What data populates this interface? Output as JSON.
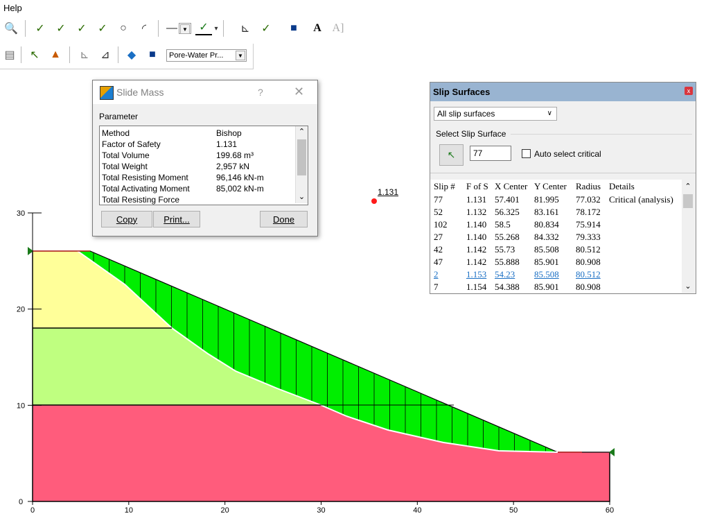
{
  "menu": {
    "help": "Help"
  },
  "toolbar2": {
    "pore_water_combo": "Pore-Water Pr..."
  },
  "canvas": {
    "x_ticks": [
      "0",
      "10",
      "20",
      "30",
      "40",
      "50",
      "60"
    ],
    "y_ticks": [
      "0",
      "10",
      "20",
      "30"
    ],
    "fs_label": "1.131",
    "colors": {
      "top_layer": "#ffff99",
      "mid_layer": "#bfff80",
      "bottom_layer": "#ff5c7c",
      "slide_mass": "#00ee00"
    }
  },
  "slide_mass": {
    "title": "Slide Mass",
    "help_glyph": "?",
    "close_glyph": "✕",
    "parameter_label": "Parameter",
    "rows": [
      {
        "k": "Method",
        "v": "Bishop"
      },
      {
        "k": "Factor of Safety",
        "v": "1.131"
      },
      {
        "k": "Total Volume",
        "v": "199.68 m³"
      },
      {
        "k": "Total Weight",
        "v": "2,957 kN"
      },
      {
        "k": "Total Resisting Moment",
        "v": "96,146 kN-m"
      },
      {
        "k": "Total Activating Moment",
        "v": "85,002 kN-m"
      },
      {
        "k": "Total Resisting Force",
        "v": ""
      }
    ],
    "copy_label": "Copy",
    "print_label": "Print...",
    "done_label": "Done"
  },
  "slip_surfaces": {
    "title": "Slip Surfaces",
    "scope": "All slip surfaces",
    "select_label": "Select Slip Surface",
    "number": "77",
    "auto_critical": "Auto select critical",
    "columns": [
      "Slip #",
      "F of S",
      "X Center",
      "Y Center",
      "Radius",
      "Details"
    ],
    "rows": [
      [
        "77",
        "1.131",
        "57.401",
        "81.995",
        "77.032",
        "Critical (analysis)"
      ],
      [
        "52",
        "1.132",
        "56.325",
        "83.161",
        "78.172",
        ""
      ],
      [
        "102",
        "1.140",
        "58.5",
        "80.834",
        "75.914",
        ""
      ],
      [
        "27",
        "1.140",
        "55.268",
        "84.332",
        "79.333",
        ""
      ],
      [
        "42",
        "1.142",
        "55.73",
        "85.508",
        "80.512",
        ""
      ],
      [
        "47",
        "1.142",
        "55.888",
        "85.901",
        "80.908",
        ""
      ],
      [
        "2",
        "1.153",
        "54.23",
        "85.508",
        "80.512",
        ""
      ],
      [
        "7",
        "1.154",
        "54.388",
        "85.901",
        "80.908",
        ""
      ]
    ]
  }
}
